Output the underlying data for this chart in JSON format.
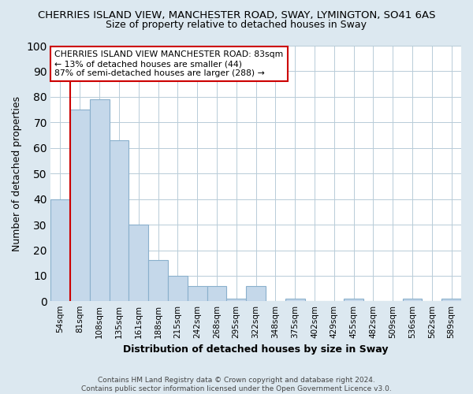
{
  "title": "CHERRIES ISLAND VIEW, MANCHESTER ROAD, SWAY, LYMINGTON, SO41 6AS",
  "subtitle": "Size of property relative to detached houses in Sway",
  "xlabel": "Distribution of detached houses by size in Sway",
  "ylabel": "Number of detached properties",
  "footer_line1": "Contains HM Land Registry data © Crown copyright and database right 2024.",
  "footer_line2": "Contains public sector information licensed under the Open Government Licence v3.0.",
  "bar_labels": [
    "54sqm",
    "81sqm",
    "108sqm",
    "135sqm",
    "161sqm",
    "188sqm",
    "215sqm",
    "242sqm",
    "268sqm",
    "295sqm",
    "322sqm",
    "348sqm",
    "375sqm",
    "402sqm",
    "429sqm",
    "455sqm",
    "482sqm",
    "509sqm",
    "536sqm",
    "562sqm",
    "589sqm"
  ],
  "bar_values": [
    40,
    75,
    79,
    63,
    30,
    16,
    10,
    6,
    6,
    1,
    6,
    0,
    1,
    0,
    0,
    1,
    0,
    0,
    1,
    0,
    1
  ],
  "bar_color": "#c5d8ea",
  "bar_edge_color": "#8ab0cc",
  "vline_x_index": 1,
  "vline_color": "#cc0000",
  "annotation_title": "CHERRIES ISLAND VIEW MANCHESTER ROAD: 83sqm",
  "annotation_line2": "← 13% of detached houses are smaller (44)",
  "annotation_line3": "87% of semi-detached houses are larger (288) →",
  "annotation_box_facecolor": "white",
  "annotation_box_edgecolor": "#cc0000",
  "ylim": [
    0,
    100
  ],
  "background_color": "#dce8f0",
  "plot_background_color": "white",
  "grid_color": "#b8ccd8",
  "title_fontsize": 9.5,
  "subtitle_fontsize": 9,
  "axis_label_fontsize": 9,
  "tick_fontsize": 7.5,
  "footer_fontsize": 6.5
}
